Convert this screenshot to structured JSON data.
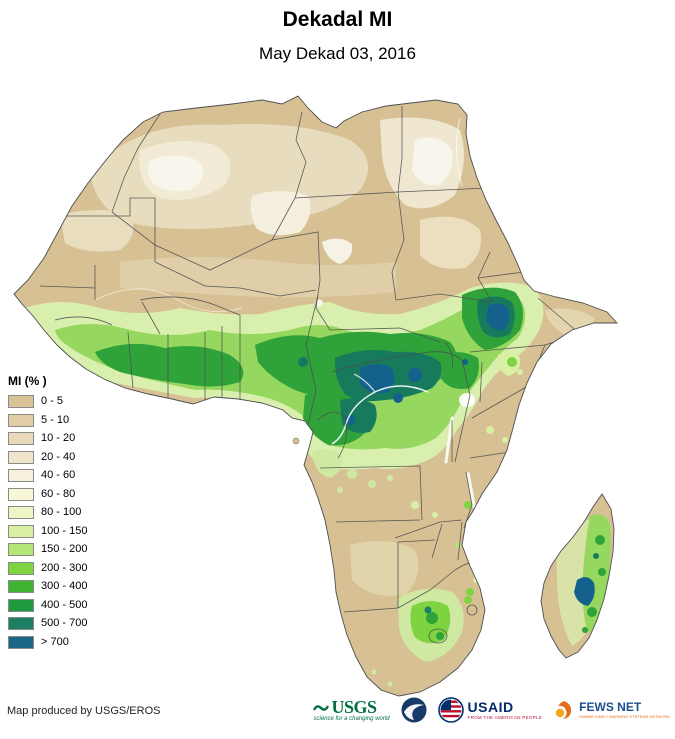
{
  "header": {
    "title": "Dekadal MI",
    "subtitle": "May Dekad 03, 2016"
  },
  "legend": {
    "title": "MI (% )",
    "items": [
      {
        "label": "0 - 5",
        "color": "#d9c296"
      },
      {
        "label": "5 - 10",
        "color": "#e0cda6"
      },
      {
        "label": "10 - 20",
        "color": "#e8dab8"
      },
      {
        "label": "20 - 40",
        "color": "#efe5cb"
      },
      {
        "label": "40 - 60",
        "color": "#f6f0dc"
      },
      {
        "label": "60 - 80",
        "color": "#f8f8d9"
      },
      {
        "label": "80 - 100",
        "color": "#edf6c5"
      },
      {
        "label": "100 - 150",
        "color": "#d9f0a4"
      },
      {
        "label": "150 - 200",
        "color": "#b5e575"
      },
      {
        "label": "200 - 300",
        "color": "#7ed341"
      },
      {
        "label": "300 - 400",
        "color": "#3eb432"
      },
      {
        "label": "400 - 500",
        "color": "#1f9a3e"
      },
      {
        "label": "500 - 700",
        "color": "#1c7f63"
      },
      {
        "label": "> 700",
        "color": "#1b6687"
      }
    ]
  },
  "map": {
    "land_color": "#d7c094",
    "ocean_color": "#ffffff",
    "border_color": "#4d4d4d"
  },
  "footer": {
    "credit": "Map produced by USGS/EROS"
  },
  "logos": {
    "usgs": {
      "name": "USGS",
      "tagline": "science for a changing world"
    },
    "noaa": {
      "name": "NOAA"
    },
    "usaid": {
      "name": "USAID",
      "tagline": "FROM THE AMERICAN PEOPLE"
    },
    "fewsnet": {
      "name": "FEWS NET",
      "tagline": "FAMINE EARLY WARNING SYSTEMS NETWORK"
    }
  }
}
